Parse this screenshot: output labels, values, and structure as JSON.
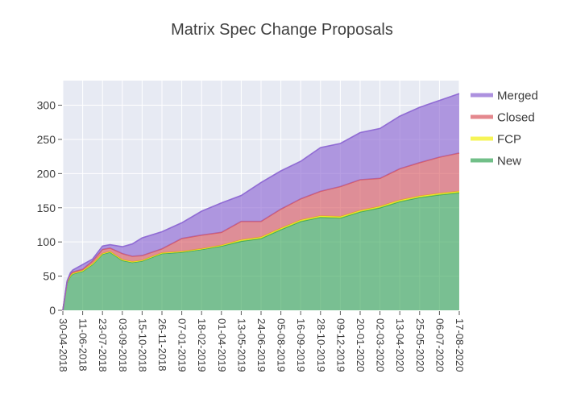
{
  "title": "Matrix Spec Change Proposals",
  "legend": {
    "items": [
      "Merged",
      "Closed",
      "FCP",
      "New"
    ]
  },
  "chart_data": {
    "type": "area",
    "stacked": true,
    "title": "Matrix Spec Change Proposals",
    "xlabel": "",
    "ylabel": "",
    "grid": true,
    "legend_position": "right-top",
    "plot_bg": "#e7eaf3",
    "grid_color": "#ffffff",
    "text_color": "#3b3b3b",
    "fill_opacity": 0.62,
    "ylim": [
      0,
      336
    ],
    "y_ticks": [
      0,
      50,
      100,
      150,
      200,
      250,
      300
    ],
    "x_tick_interval_days": 42,
    "x_tick_labels": [
      "30-04-2018",
      "11-06-2018",
      "23-07-2018",
      "03-09-2018",
      "15-10-2018",
      "26-11-2018",
      "07-01-2019",
      "18-02-2019",
      "01-04-2019",
      "13-05-2019",
      "24-06-2019",
      "05-08-2019",
      "16-09-2019",
      "28-10-2019",
      "09-12-2019",
      "20-01-2020",
      "02-03-2020",
      "13-04-2020",
      "25-05-2020",
      "06-07-2020",
      "17-08-2020"
    ],
    "x_dates": [
      "30-04-2018",
      "09-05-2018",
      "16-05-2018",
      "21-05-2018",
      "11-06-2018",
      "02-07-2018",
      "23-07-2018",
      "08-08-2018",
      "03-09-2018",
      "24-09-2018",
      "15-10-2018",
      "26-11-2018",
      "07-01-2019",
      "18-02-2019",
      "01-04-2019",
      "13-05-2019",
      "24-06-2019",
      "05-08-2019",
      "16-09-2019",
      "28-10-2019",
      "09-12-2019",
      "20-01-2020",
      "02-03-2020",
      "13-04-2020",
      "25-05-2020",
      "06-07-2020",
      "17-08-2020"
    ],
    "x_days": [
      0,
      9,
      16,
      21,
      42,
      63,
      84,
      100,
      126,
      147,
      168,
      210,
      252,
      294,
      336,
      378,
      420,
      462,
      504,
      546,
      588,
      630,
      672,
      714,
      756,
      798,
      840
    ],
    "series": [
      {
        "name": "New",
        "color": "#35a456",
        "values": [
          0,
          40,
          50,
          53,
          57,
          67,
          82,
          85,
          73,
          70,
          72,
          83,
          85,
          89,
          94,
          101,
          105,
          118,
          130,
          136,
          135,
          144,
          150,
          159,
          165,
          169,
          172
        ]
      },
      {
        "name": "FCP",
        "color": "#f2ef10",
        "values": [
          0,
          1,
          1,
          1,
          1,
          1,
          1,
          1,
          1,
          1,
          1,
          1,
          1,
          1,
          1,
          2,
          2,
          2,
          2,
          2,
          2,
          2,
          2,
          2,
          2,
          2,
          2
        ]
      },
      {
        "name": "Closed",
        "color": "#d9565e",
        "values": [
          0,
          1,
          2,
          2,
          2,
          4,
          6,
          5,
          9,
          8,
          7,
          6,
          19,
          20,
          19,
          27,
          23,
          28,
          31,
          36,
          44,
          45,
          41,
          46,
          49,
          53,
          56
        ]
      },
      {
        "name": "Merged",
        "color": "#8a63d2",
        "values": [
          0,
          1,
          2,
          3,
          7,
          3,
          5,
          5,
          10,
          18,
          26,
          25,
          23,
          35,
          43,
          38,
          57,
          56,
          55,
          64,
          63,
          69,
          73,
          77,
          81,
          83,
          87
        ]
      }
    ]
  }
}
